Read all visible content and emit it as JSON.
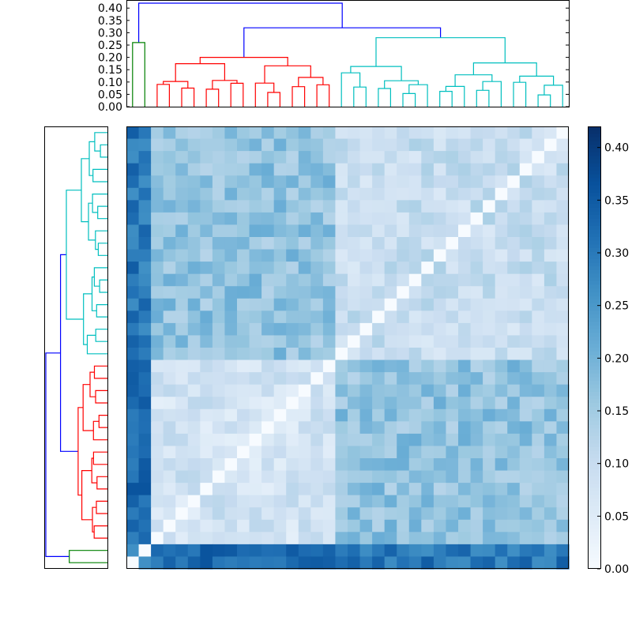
{
  "chart_data": {
    "type": "heatmap",
    "title": "",
    "n_items": 36,
    "leaf_order_note": "heatmap rows/cols follow dendrogram leaf order",
    "colormap": "Blues",
    "value_range": [
      0.0,
      0.42
    ],
    "colorbar": {
      "ticks": [
        0.0,
        0.05,
        0.1,
        0.15,
        0.2,
        0.25,
        0.3,
        0.35,
        0.4
      ],
      "tick_labels": [
        "0.00",
        "0.05",
        "0.10",
        "0.15",
        "0.20",
        "0.25",
        "0.30",
        "0.35",
        "0.40"
      ]
    },
    "top_dendrogram": {
      "yaxis": {
        "range": [
          0.0,
          0.42
        ],
        "ticks": [
          0.0,
          0.05,
          0.1,
          0.15,
          0.2,
          0.25,
          0.3,
          0.35,
          0.4
        ],
        "tick_labels": [
          "0.00",
          "0.05",
          "0.10",
          "0.15",
          "0.20",
          "0.25",
          "0.30",
          "0.35",
          "0.40"
        ]
      }
    },
    "clusters": [
      {
        "name": "green",
        "color": "#008000",
        "size": 2,
        "internal_height": 0.26
      },
      {
        "name": "red",
        "color": "#ff0000",
        "size": 15,
        "internal_height": 0.2
      },
      {
        "name": "cyan",
        "color": "#00bfbf",
        "size": 19,
        "internal_height": 0.28
      }
    ],
    "root_link_color": "#0000ff",
    "merge_heights": {
      "green_vs_rest": 0.42,
      "red_vs_cyan": 0.32
    },
    "block_distances": {
      "within_green": 0.24,
      "within_red": 0.08,
      "within_cyan": 0.1,
      "red_cyan": 0.17,
      "green_red": 0.33,
      "green_cyan": 0.31
    }
  }
}
